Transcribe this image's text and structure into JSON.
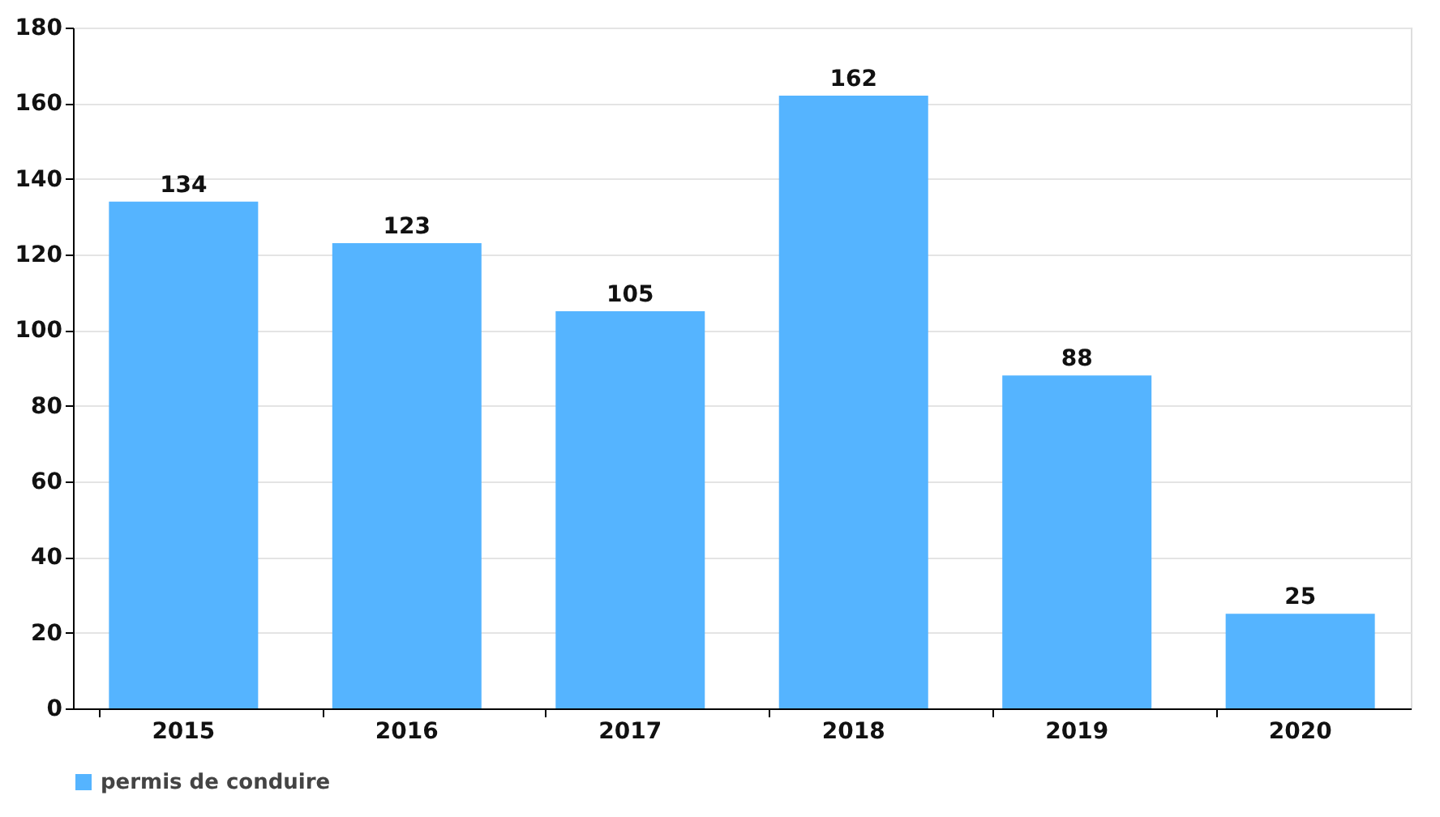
{
  "chart_data": {
    "type": "bar",
    "categories": [
      "2015",
      "2016",
      "2017",
      "2018",
      "2019",
      "2020"
    ],
    "series": [
      {
        "name": "permis de conduire",
        "color": "#55b4ff",
        "values": [
          134,
          123,
          105,
          162,
          88,
          25
        ]
      }
    ],
    "ylim": [
      0,
      180
    ],
    "yticks": [
      0,
      20,
      40,
      60,
      80,
      100,
      120,
      140,
      160,
      180
    ],
    "grid": "y",
    "legend": "bottom",
    "data_labels": true
  }
}
